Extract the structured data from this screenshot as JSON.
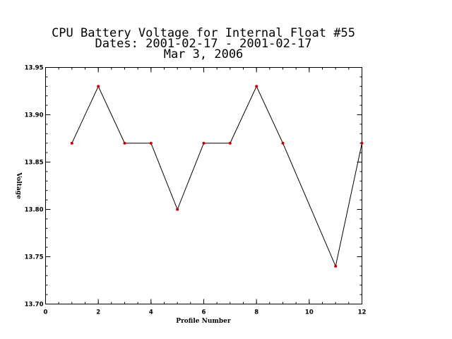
{
  "chart_data": {
    "type": "line",
    "title": [
      "CPU Battery Voltage for Internal Float #55",
      "Dates:  2001-02-17 -  2001-02-17",
      "Mar  3, 2006"
    ],
    "xlabel": "Profile Number",
    "ylabel": "Voltage",
    "xlim": [
      0,
      12
    ],
    "ylim": [
      13.7,
      13.95
    ],
    "x_ticks": [
      0,
      2,
      4,
      6,
      8,
      10,
      12
    ],
    "x_tick_labels": [
      "0",
      "2",
      "4",
      "6",
      "8",
      "10",
      "12"
    ],
    "y_ticks": [
      13.7,
      13.75,
      13.8,
      13.85,
      13.9,
      13.95
    ],
    "y_tick_labels": [
      "13.70",
      "13.75",
      "13.80",
      "13.85",
      "13.90",
      "13.95"
    ],
    "x_minor_step": 0.5,
    "y_minor_step": 0.01,
    "grid": false,
    "series": [
      {
        "x": [
          1,
          2,
          3,
          4,
          5,
          6,
          7,
          8,
          9,
          11,
          12
        ],
        "values": [
          13.87,
          13.93,
          13.87,
          13.87,
          13.8,
          13.87,
          13.87,
          13.93,
          13.87,
          13.74,
          13.87
        ],
        "line_color": "#000000",
        "marker_color": "#cc0000"
      }
    ]
  }
}
